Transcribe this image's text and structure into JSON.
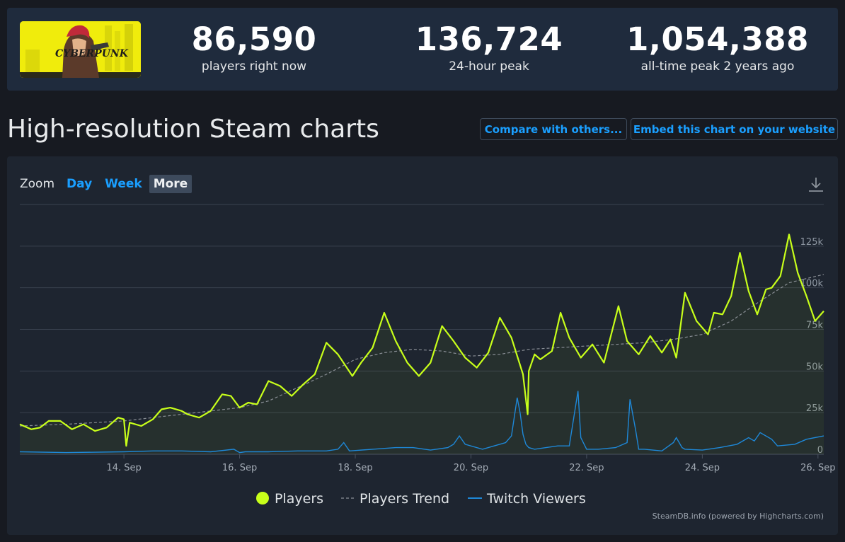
{
  "stats": [
    {
      "value": "86,590",
      "label": "players right now"
    },
    {
      "value": "136,724",
      "label": "24-hour peak"
    },
    {
      "value": "1,054,388",
      "label": "all-time peak 2 years ago"
    }
  ],
  "logo": {
    "text": "CYBERPUNK"
  },
  "page_title": "High-resolution Steam charts",
  "buttons": {
    "compare": "Compare with others...",
    "embed": "Embed this chart on your website"
  },
  "zoom": {
    "label": "Zoom",
    "options": [
      "Day",
      "Week",
      "More"
    ],
    "active": "More"
  },
  "icons": {
    "download": "download-icon"
  },
  "credits": "SteamDB.info (powered by Highcharts.com)",
  "colors": {
    "players": "#c8ff1a",
    "trend": "#8a8f96",
    "twitch": "#1e88d8",
    "accent": "#1a9fff"
  },
  "chart_data": {
    "type": "line",
    "title": "",
    "xlabel": "",
    "ylabel": "",
    "x_ticks": [
      "14. Sep",
      "16. Sep",
      "18. Sep",
      "20. Sep",
      "22. Sep",
      "24. Sep",
      "26. Sep"
    ],
    "x_tick_days": [
      14,
      16,
      18,
      20,
      22,
      24,
      26
    ],
    "xlim": [
      12.2,
      26.1
    ],
    "y_ticks": [
      "0",
      "25k",
      "50k",
      "75k",
      "100k",
      "125k"
    ],
    "y_tick_values": [
      0,
      25000,
      50000,
      75000,
      100000,
      125000
    ],
    "ylim": [
      0,
      150000
    ],
    "legend_position": "bottom-center",
    "grid": true,
    "series": [
      {
        "name": "Players",
        "x": [
          12.2,
          12.4,
          12.55,
          12.7,
          12.9,
          13.1,
          13.3,
          13.5,
          13.7,
          13.9,
          14.0,
          14.04,
          14.1,
          14.3,
          14.5,
          14.65,
          14.8,
          15.0,
          15.1,
          15.3,
          15.5,
          15.7,
          15.85,
          16.0,
          16.15,
          16.3,
          16.5,
          16.7,
          16.9,
          17.1,
          17.3,
          17.5,
          17.7,
          17.95,
          18.1,
          18.3,
          18.5,
          18.7,
          18.9,
          19.1,
          19.3,
          19.5,
          19.7,
          19.9,
          20.1,
          20.3,
          20.5,
          20.7,
          20.9,
          20.98,
          21.0,
          21.1,
          21.2,
          21.4,
          21.55,
          21.7,
          21.9,
          22.1,
          22.3,
          22.55,
          22.7,
          22.9,
          23.1,
          23.3,
          23.45,
          23.55,
          23.7,
          23.9,
          24.1,
          24.2,
          24.35,
          24.5,
          24.65,
          24.8,
          24.95,
          25.1,
          25.2,
          25.35,
          25.5,
          25.65,
          25.8,
          25.95,
          26.1
        ],
        "y": [
          18000,
          15000,
          16000,
          20000,
          20000,
          15000,
          18000,
          14000,
          16000,
          22000,
          21000,
          5000,
          19000,
          17000,
          21000,
          27000,
          28000,
          26000,
          24000,
          22000,
          26000,
          36000,
          35000,
          28000,
          31000,
          30000,
          44000,
          41000,
          35000,
          42000,
          48000,
          67000,
          60000,
          47000,
          55000,
          64000,
          85000,
          68000,
          55000,
          47000,
          55000,
          77000,
          68000,
          58000,
          52000,
          61000,
          82000,
          70000,
          48000,
          24000,
          50000,
          60000,
          57000,
          62000,
          85000,
          70000,
          58000,
          66000,
          55000,
          89000,
          68000,
          60000,
          71000,
          61000,
          69000,
          58000,
          97000,
          80000,
          72000,
          85000,
          84000,
          95000,
          121000,
          98000,
          84000,
          99000,
          100000,
          107000,
          132000,
          109000,
          95000,
          80000,
          86000
        ]
      },
      {
        "name": "Players Trend",
        "x": [
          12.2,
          13.0,
          14.0,
          15.0,
          16.0,
          16.5,
          17.0,
          17.5,
          18.0,
          18.5,
          19.0,
          19.5,
          20.0,
          20.5,
          21.0,
          21.5,
          22.0,
          22.5,
          23.0,
          23.5,
          24.0,
          24.5,
          25.0,
          25.5,
          26.1
        ],
        "y": [
          17000,
          18000,
          20000,
          24000,
          28000,
          32000,
          40000,
          48000,
          57000,
          61000,
          63000,
          62000,
          59000,
          60000,
          63000,
          64000,
          65000,
          66000,
          67000,
          69000,
          72000,
          80000,
          92000,
          103000,
          108000
        ]
      },
      {
        "name": "Twitch Viewers",
        "x": [
          12.2,
          13.0,
          14.0,
          14.5,
          15.0,
          15.5,
          15.9,
          16.0,
          16.1,
          16.5,
          17.0,
          17.5,
          17.7,
          17.8,
          17.9,
          18.3,
          18.7,
          19.0,
          19.3,
          19.6,
          19.7,
          19.8,
          19.9,
          20.2,
          20.4,
          20.6,
          20.7,
          20.8,
          20.85,
          20.9,
          20.95,
          21.0,
          21.1,
          21.5,
          21.7,
          21.8,
          21.85,
          21.9,
          22.0,
          22.2,
          22.5,
          22.7,
          22.75,
          22.85,
          22.9,
          23.0,
          23.3,
          23.5,
          23.55,
          23.65,
          23.7,
          24.0,
          24.3,
          24.6,
          24.8,
          24.9,
          25.0,
          25.2,
          25.3,
          25.6,
          25.8,
          26.1
        ],
        "y": [
          1500,
          1000,
          1500,
          2000,
          2000,
          1500,
          3000,
          1000,
          1500,
          1500,
          2000,
          2000,
          3000,
          7000,
          2000,
          3000,
          4000,
          4000,
          2500,
          4000,
          6000,
          11000,
          6000,
          3000,
          5000,
          7000,
          11000,
          34000,
          25000,
          12000,
          6000,
          4000,
          3000,
          5000,
          5000,
          27000,
          38000,
          10000,
          3000,
          3000,
          4000,
          7000,
          33000,
          14000,
          3000,
          3000,
          2000,
          7000,
          10000,
          4000,
          3000,
          2500,
          4000,
          6000,
          10000,
          8000,
          13000,
          9000,
          5000,
          6000,
          9000,
          11000
        ]
      }
    ]
  }
}
